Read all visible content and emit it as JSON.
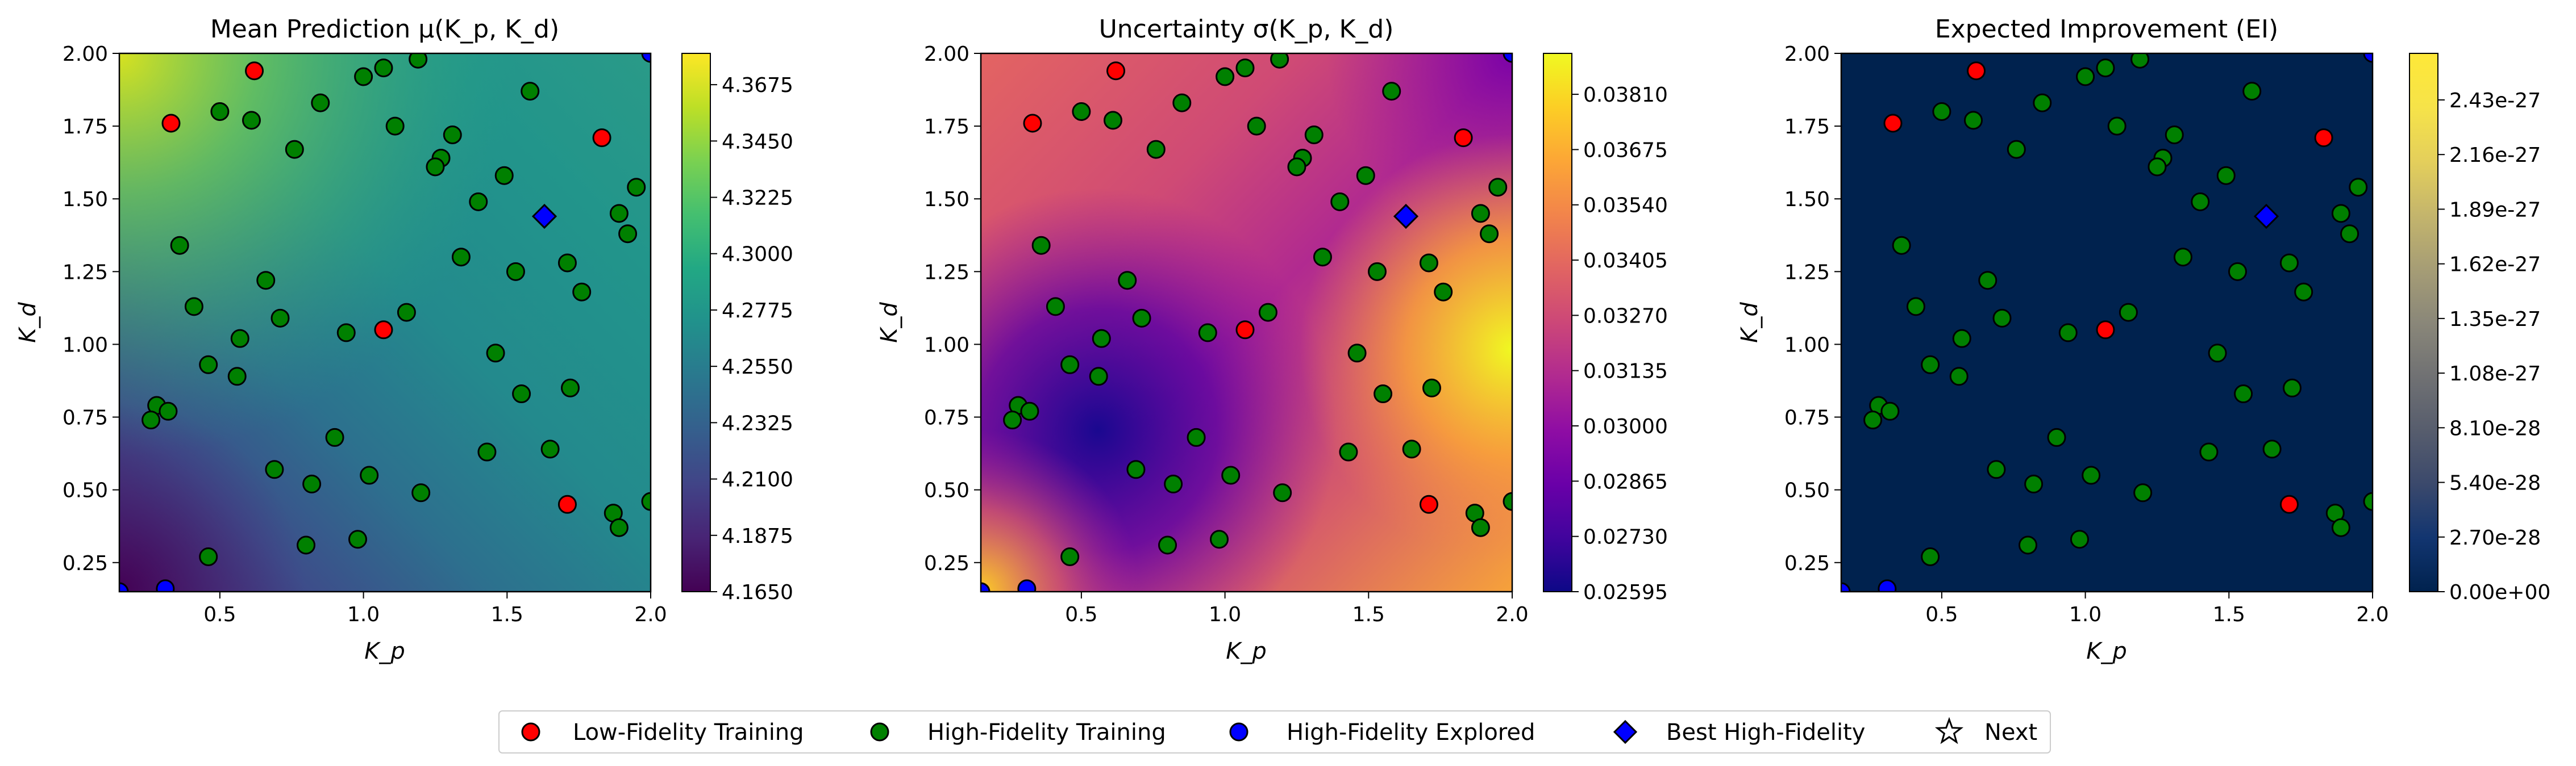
{
  "chart_data": [
    {
      "type": "heatmap",
      "title": "Mean Prediction μ(K_p, K_d)",
      "xlabel": "K_p",
      "ylabel": "K_d",
      "xlim": [
        0.15,
        2.0
      ],
      "ylim": [
        0.15,
        2.0
      ],
      "xticks": [
        "0.5",
        "1.0",
        "1.5",
        "2.0"
      ],
      "yticks": [
        "0.25",
        "0.50",
        "0.75",
        "1.00",
        "1.25",
        "1.50",
        "1.75",
        "2.00"
      ],
      "colormap": "viridis",
      "colorbar_range": [
        4.165,
        4.38
      ],
      "colorbar_ticks": [
        "4.1650",
        "4.1875",
        "4.2100",
        "4.2325",
        "4.2550",
        "4.2775",
        "4.3000",
        "4.3225",
        "4.3450",
        "4.3675"
      ]
    },
    {
      "type": "heatmap",
      "title": "Uncertainty σ(K_p, K_d)",
      "xlabel": "K_p",
      "ylabel": "K_d",
      "xlim": [
        0.15,
        2.0
      ],
      "ylim": [
        0.15,
        2.0
      ],
      "xticks": [
        "0.5",
        "1.0",
        "1.5",
        "2.0"
      ],
      "yticks": [
        "0.25",
        "0.50",
        "0.75",
        "1.00",
        "1.25",
        "1.50",
        "1.75",
        "2.00"
      ],
      "colormap": "plasma",
      "colorbar_range": [
        0.02595,
        0.0391
      ],
      "colorbar_ticks": [
        "0.02595",
        "0.02730",
        "0.02865",
        "0.03000",
        "0.03135",
        "0.03270",
        "0.03405",
        "0.03540",
        "0.03675",
        "0.03810"
      ]
    },
    {
      "type": "heatmap",
      "title": "Expected Improvement (EI)",
      "xlabel": "K_p",
      "ylabel": "K_d",
      "xlim": [
        0.15,
        2.0
      ],
      "ylim": [
        0.15,
        2.0
      ],
      "xticks": [
        "0.5",
        "1.0",
        "1.5",
        "2.0"
      ],
      "yticks": [
        "0.25",
        "0.50",
        "0.75",
        "1.00",
        "1.25",
        "1.50",
        "1.75",
        "2.00"
      ],
      "colormap": "cividis",
      "colorbar_range": [
        0,
        2.66e-27
      ],
      "colorbar_ticks": [
        "0.00e+00",
        "2.70e-28",
        "5.40e-28",
        "8.10e-28",
        "1.08e-27",
        "1.35e-27",
        "1.62e-27",
        "1.89e-27",
        "2.16e-27",
        "2.43e-27"
      ]
    }
  ],
  "points": {
    "low_fidelity": [
      [
        0.62,
        1.94
      ],
      [
        0.33,
        1.76
      ],
      [
        1.83,
        1.71
      ],
      [
        1.07,
        1.05
      ],
      [
        1.71,
        0.45
      ]
    ],
    "high_fidelity": [
      [
        1.0,
        1.92
      ],
      [
        1.07,
        1.95
      ],
      [
        1.19,
        1.98
      ],
      [
        0.5,
        1.8
      ],
      [
        0.61,
        1.77
      ],
      [
        0.85,
        1.83
      ],
      [
        1.11,
        1.75
      ],
      [
        0.76,
        1.67
      ],
      [
        1.31,
        1.72
      ],
      [
        1.27,
        1.64
      ],
      [
        1.25,
        1.61
      ],
      [
        1.58,
        1.87
      ],
      [
        1.49,
        1.58
      ],
      [
        1.4,
        1.49
      ],
      [
        1.89,
        1.45
      ],
      [
        1.95,
        1.54
      ],
      [
        1.92,
        1.38
      ],
      [
        0.36,
        1.34
      ],
      [
        1.34,
        1.3
      ],
      [
        1.53,
        1.25
      ],
      [
        1.71,
        1.28
      ],
      [
        1.76,
        1.18
      ],
      [
        0.41,
        1.13
      ],
      [
        0.66,
        1.22
      ],
      [
        0.71,
        1.09
      ],
      [
        1.15,
        1.11
      ],
      [
        0.94,
        1.04
      ],
      [
        0.57,
        1.02
      ],
      [
        0.46,
        0.93
      ],
      [
        0.56,
        0.89
      ],
      [
        1.46,
        0.97
      ],
      [
        1.55,
        0.83
      ],
      [
        1.72,
        0.85
      ],
      [
        0.28,
        0.79
      ],
      [
        0.32,
        0.77
      ],
      [
        0.26,
        0.74
      ],
      [
        0.9,
        0.68
      ],
      [
        1.43,
        0.63
      ],
      [
        1.65,
        0.64
      ],
      [
        0.69,
        0.57
      ],
      [
        0.82,
        0.52
      ],
      [
        1.02,
        0.55
      ],
      [
        1.2,
        0.49
      ],
      [
        1.87,
        0.42
      ],
      [
        1.89,
        0.37
      ],
      [
        2.0,
        0.46
      ],
      [
        0.8,
        0.31
      ],
      [
        0.98,
        0.33
      ],
      [
        0.46,
        0.27
      ]
    ],
    "high_fidelity_explored": [
      [
        0.31,
        0.16
      ],
      [
        2.0,
        2.0
      ],
      [
        0.15,
        0.15
      ]
    ],
    "best_high_fidelity": [
      1.63,
      1.44
    ]
  },
  "legend": [
    {
      "label": "Low-Fidelity Training",
      "marker": "circle",
      "color": "#ff0000"
    },
    {
      "label": "High-Fidelity Training",
      "marker": "circle",
      "color": "#008000"
    },
    {
      "label": "High-Fidelity Explored",
      "marker": "circle",
      "color": "#0000ff"
    },
    {
      "label": "Best High-Fidelity",
      "marker": "diamond",
      "color": "#0000ff"
    },
    {
      "label": "Next",
      "marker": "star",
      "color": "#ffffff"
    }
  ]
}
